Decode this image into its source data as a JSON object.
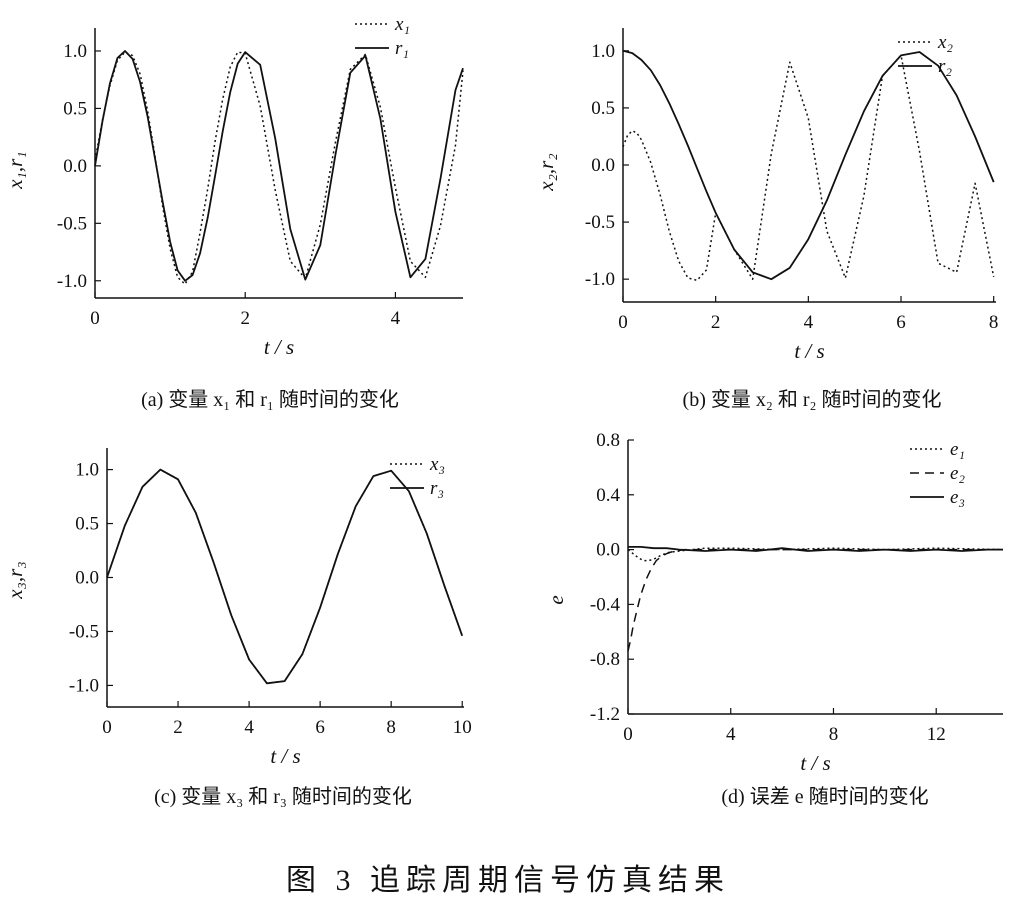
{
  "figure_caption": "图 3   追踪周期信号仿真结果",
  "panels": [
    {
      "caption": "(a)  变量 x₁ 和 r₁ 随时间的变化"
    },
    {
      "caption": "(b)  变量 x₂ 和 r₂ 随时间的变化"
    },
    {
      "caption": "(c)  变量 x₃ 和 r₃ 随时间的变化"
    },
    {
      "caption": "(d)  误差 e 随时间的变化"
    }
  ],
  "chart_data": [
    {
      "type": "line",
      "xlabel": "t / s",
      "ylabel": "x₁,r₁",
      "xlim": [
        0,
        4.9
      ],
      "ylim": [
        -1.15,
        1.2
      ],
      "xticks": [
        0,
        2,
        4
      ],
      "yticks": [
        1.0,
        0.5,
        0.0,
        -0.5,
        -1.0
      ],
      "xtick_labels": [
        "0",
        "2",
        "4"
      ],
      "ytick_labels": [
        "1.0",
        "0.5",
        "0.0",
        "-0.5",
        "-1.0"
      ],
      "legend": "top-right",
      "grid": false,
      "series": [
        {
          "name": "x₁",
          "style": "dotted",
          "x": [
            0,
            0.1,
            0.2,
            0.3,
            0.4,
            0.5,
            0.6,
            0.7,
            0.8,
            0.9,
            1.0,
            1.1,
            1.2,
            1.3,
            1.4,
            1.5,
            1.6,
            1.7,
            1.8,
            1.9,
            2.0,
            2.2,
            2.4,
            2.6,
            2.8,
            3.0,
            3.2,
            3.4,
            3.6,
            3.8,
            4.0,
            4.2,
            4.4,
            4.6,
            4.8,
            4.9
          ],
          "y": [
            0.05,
            0.4,
            0.7,
            0.92,
            0.99,
            0.96,
            0.8,
            0.48,
            0.08,
            -0.35,
            -0.72,
            -0.97,
            -1.03,
            -0.92,
            -0.58,
            -0.2,
            0.22,
            0.58,
            0.86,
            0.99,
            0.98,
            0.52,
            -0.21,
            -0.83,
            -0.98,
            -0.51,
            0.2,
            0.84,
            0.97,
            0.51,
            -0.19,
            -0.83,
            -0.97,
            -0.52,
            0.18,
            0.83
          ]
        },
        {
          "name": "r₁",
          "style": "solid",
          "x": [
            0,
            0.1,
            0.2,
            0.3,
            0.4,
            0.5,
            0.6,
            0.7,
            0.8,
            0.9,
            1.0,
            1.1,
            1.2,
            1.3,
            1.4,
            1.5,
            1.6,
            1.7,
            1.8,
            1.9,
            2.0,
            2.2,
            2.4,
            2.6,
            2.8,
            3.0,
            3.2,
            3.4,
            3.6,
            3.8,
            4.0,
            4.2,
            4.4,
            4.6,
            4.8,
            4.9
          ],
          "y": [
            0.0,
            0.39,
            0.72,
            0.94,
            1.0,
            0.93,
            0.73,
            0.43,
            0.06,
            -0.31,
            -0.66,
            -0.91,
            -1.0,
            -0.95,
            -0.76,
            -0.45,
            -0.08,
            0.3,
            0.64,
            0.89,
            0.99,
            0.88,
            0.24,
            -0.55,
            -0.99,
            -0.69,
            0.09,
            0.81,
            0.96,
            0.41,
            -0.4,
            -0.97,
            -0.81,
            -0.11,
            0.66,
            0.85
          ]
        }
      ]
    },
    {
      "type": "line",
      "xlabel": "t / s",
      "ylabel": "x₂,r₂",
      "xlim": [
        0,
        8.05
      ],
      "ylim": [
        -1.2,
        1.2
      ],
      "xticks": [
        0,
        2,
        4,
        6,
        8
      ],
      "yticks": [
        1.0,
        0.5,
        0.0,
        -0.5,
        -1.0
      ],
      "xtick_labels": [
        "0",
        "2",
        "4",
        "6",
        "8"
      ],
      "ytick_labels": [
        "1.0",
        "0.5",
        "0.0",
        "-0.5",
        "-1.0"
      ],
      "legend": "top-right",
      "grid": false,
      "series": [
        {
          "name": "x₂",
          "style": "dotted",
          "x": [
            0,
            0.1,
            0.2,
            0.3,
            0.4,
            0.6,
            0.8,
            1.0,
            1.2,
            1.4,
            1.6,
            1.8,
            2.0,
            2.4,
            2.8,
            3.2,
            3.6,
            4.0,
            4.4,
            4.8,
            5.2,
            5.6,
            6.0,
            6.4,
            6.8,
            7.2,
            7.6,
            8.0
          ],
          "y": [
            0.16,
            0.26,
            0.3,
            0.28,
            0.22,
            0.02,
            -0.26,
            -0.58,
            -0.84,
            -0.99,
            -1.01,
            -0.92,
            -0.42,
            -0.74,
            -1.0,
            0.1,
            0.9,
            0.41,
            -0.58,
            -0.99,
            -0.27,
            0.78,
            0.96,
            0.12,
            -0.86,
            -0.94,
            -0.16,
            -0.98
          ]
        },
        {
          "name": "r₂",
          "style": "solid",
          "x": [
            0,
            0.2,
            0.4,
            0.6,
            0.8,
            1.0,
            1.2,
            1.4,
            1.6,
            1.8,
            2.0,
            2.4,
            2.8,
            3.2,
            3.6,
            4.0,
            4.4,
            4.8,
            5.2,
            5.6,
            6.0,
            6.4,
            6.8,
            7.2,
            7.6,
            8.0
          ],
          "y": [
            1.0,
            0.98,
            0.92,
            0.83,
            0.7,
            0.54,
            0.36,
            0.17,
            -0.03,
            -0.23,
            -0.42,
            -0.74,
            -0.94,
            -1.0,
            -0.9,
            -0.65,
            -0.31,
            0.09,
            0.47,
            0.78,
            0.96,
            0.99,
            0.87,
            0.61,
            0.25,
            -0.15
          ]
        }
      ]
    },
    {
      "type": "line",
      "xlabel": "t / s",
      "ylabel": "x₃,r₃",
      "xlim": [
        0,
        10.05
      ],
      "ylim": [
        -1.2,
        1.2
      ],
      "xticks": [
        0,
        2,
        4,
        6,
        8,
        10
      ],
      "yticks": [
        1.0,
        0.5,
        0.0,
        -0.5,
        -1.0
      ],
      "xtick_labels": [
        "0",
        "2",
        "4",
        "6",
        "8",
        "10"
      ],
      "ytick_labels": [
        "1.0",
        "0.5",
        "0.0",
        "-0.5",
        "-1.0"
      ],
      "legend": "top-right",
      "grid": false,
      "series": [
        {
          "name": "x₃",
          "style": "dotted",
          "x": [
            0,
            0.5,
            1.0,
            1.5,
            2.0,
            2.5,
            3.0,
            3.5,
            4.0,
            4.5,
            5.0,
            5.5,
            6.0,
            6.5,
            7.0,
            7.5,
            8.0,
            8.5,
            9.0,
            9.5,
            10.0
          ],
          "y": [
            0.0,
            0.48,
            0.84,
            1.0,
            0.91,
            0.6,
            0.14,
            -0.35,
            -0.76,
            -0.98,
            -0.96,
            -0.71,
            -0.28,
            0.22,
            0.66,
            0.94,
            0.99,
            0.8,
            0.41,
            -0.08,
            -0.54
          ]
        },
        {
          "name": "r₃",
          "style": "solid",
          "x": [
            0,
            0.5,
            1.0,
            1.5,
            2.0,
            2.5,
            3.0,
            3.5,
            4.0,
            4.5,
            5.0,
            5.5,
            6.0,
            6.5,
            7.0,
            7.5,
            8.0,
            8.5,
            9.0,
            9.5,
            10.0
          ],
          "y": [
            0.0,
            0.48,
            0.84,
            1.0,
            0.91,
            0.6,
            0.14,
            -0.35,
            -0.76,
            -0.98,
            -0.96,
            -0.71,
            -0.28,
            0.22,
            0.66,
            0.94,
            0.99,
            0.8,
            0.41,
            -0.08,
            -0.54
          ]
        }
      ]
    },
    {
      "type": "line",
      "xlabel": "t / s",
      "ylabel": "e",
      "xlim": [
        0,
        14.6
      ],
      "ylim": [
        -1.2,
        0.8
      ],
      "xticks": [
        0,
        4,
        8,
        12
      ],
      "yticks": [
        0.8,
        0.4,
        0.0,
        -0.4,
        -0.8,
        -1.2
      ],
      "xtick_labels": [
        "0",
        "4",
        "8",
        "12"
      ],
      "ytick_labels": [
        "0.8",
        "0.4",
        "0.0",
        "-0.4",
        "-0.8",
        "-1.2"
      ],
      "legend": "top-right",
      "grid": false,
      "series": [
        {
          "name": "e₁",
          "style": "dotted",
          "x": [
            0,
            0.2,
            0.4,
            0.6,
            0.8,
            1.0,
            1.3,
            1.6,
            2.0,
            2.5,
            3.0,
            4.0,
            6.0,
            8.0,
            10.0,
            12.0,
            14.6
          ],
          "y": [
            0.0,
            -0.03,
            -0.06,
            -0.08,
            -0.08,
            -0.07,
            -0.04,
            -0.02,
            -0.01,
            0.0,
            0.01,
            0.01,
            0.0,
            0.01,
            0.0,
            0.01,
            0.0
          ]
        },
        {
          "name": "e₂",
          "style": "dashed",
          "x": [
            0,
            0.1,
            0.2,
            0.35,
            0.5,
            0.7,
            0.9,
            1.1,
            1.3,
            1.5,
            1.8,
            2.2,
            2.6,
            3.0,
            4.0,
            6.0,
            8.0,
            10.0,
            12.0,
            14.6
          ],
          "y": [
            -0.74,
            -0.66,
            -0.56,
            -0.44,
            -0.33,
            -0.22,
            -0.14,
            -0.08,
            -0.05,
            -0.03,
            -0.01,
            0.0,
            0.0,
            0.0,
            0.0,
            0.0,
            0.0,
            0.0,
            0.0,
            0.0
          ]
        },
        {
          "name": "e₃",
          "style": "solid",
          "x": [
            0,
            0.5,
            1.0,
            1.5,
            2.0,
            3.0,
            4.0,
            5.0,
            6.0,
            7.0,
            8.0,
            9.0,
            10.0,
            11.0,
            12.0,
            13.0,
            14.0,
            14.6
          ],
          "y": [
            0.02,
            0.02,
            0.01,
            0.01,
            0.0,
            -0.01,
            0.0,
            -0.01,
            0.01,
            -0.01,
            0.0,
            -0.01,
            0.0,
            -0.01,
            0.0,
            -0.01,
            0.0,
            0.0
          ]
        }
      ]
    }
  ]
}
